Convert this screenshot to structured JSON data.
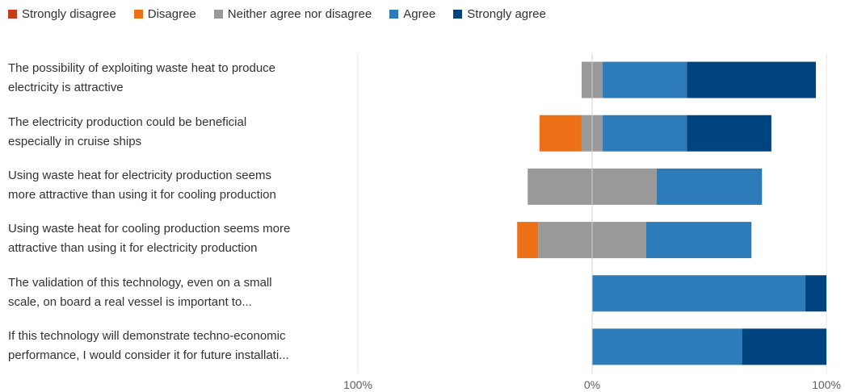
{
  "chart_data": {
    "type": "bar",
    "orientation": "horizontal",
    "stacked": "diverging",
    "legend_position": "top-left",
    "grid": true,
    "xlim": [
      -100,
      100
    ],
    "x_tick_labels": [
      "100%",
      "0%",
      "100%"
    ],
    "categories": [
      [
        "The possibility of exploiting waste heat to produce",
        "electricity is attractive"
      ],
      [
        "The electricity production could be beneficial",
        "especially in cruise ships"
      ],
      [
        "Using waste heat for electricity production seems",
        "more attractive than using it for cooling production"
      ],
      [
        "Using waste heat for cooling production seems more",
        "attractive than using it for electricity production"
      ],
      [
        "The validation of this technology, even on a small",
        "scale, on board a real vessel is important to..."
      ],
      [
        "If this technology will demonstrate techno-economic",
        "performance, I would consider it for future installati..."
      ]
    ],
    "series": [
      {
        "name": "Strongly disagree",
        "color": "#c43e1c",
        "values": [
          0,
          0,
          0,
          0,
          0,
          0
        ]
      },
      {
        "name": "Disagree",
        "color": "#ec7016",
        "values": [
          0,
          18,
          0,
          9,
          0,
          0
        ]
      },
      {
        "name": "Neither agree nor disagree",
        "color": "#999999",
        "values": [
          9,
          9,
          55,
          46,
          0,
          0
        ]
      },
      {
        "name": "Agree",
        "color": "#2e7bb9",
        "values": [
          36,
          36,
          45,
          45,
          91,
          64
        ]
      },
      {
        "name": "Strongly agree",
        "color": "#00447f",
        "values": [
          55,
          36,
          0,
          0,
          9,
          36
        ]
      }
    ]
  }
}
